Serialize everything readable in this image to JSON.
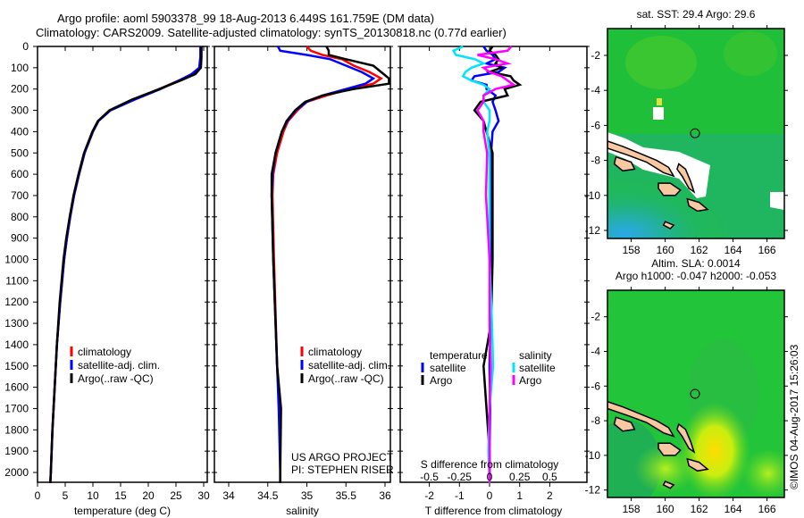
{
  "title_line1": "Argo profile: aoml 5903378_99 18-Aug-2013 6.449S 161.759E (DM data)",
  "title_line2": "Climatology: CARS2009. Satellite-adjusted climatology: synTS_20130818.nc (0.77d earlier)",
  "colors": {
    "climatology": "#ff0000",
    "satellite": "#0000ff",
    "argo": "#000000",
    "sal_satellite": "#00e5ff",
    "sal_argo": "#ff00ff"
  },
  "chart_data": [
    {
      "type": "line",
      "name": "temperature",
      "xlabel": "temperature (deg C)",
      "ylabel": "depth",
      "xlim": [
        -1,
        31
      ],
      "ylim": [
        2060,
        0
      ],
      "xticks": [
        "0",
        "5",
        "10",
        "15",
        "20",
        "25",
        "30"
      ],
      "xtick_values": [
        0,
        5,
        10,
        15,
        20,
        25,
        30
      ],
      "yticks": [
        "0",
        "100",
        "200",
        "300",
        "400",
        "500",
        "600",
        "700",
        "800",
        "900",
        "1000",
        "1100",
        "1200",
        "1300",
        "1400",
        "1500",
        "1600",
        "1700",
        "1800",
        "1900",
        "2000"
      ],
      "legend": [
        "climatology",
        "satellite-adj. clim.",
        "Argo(..raw -QC)"
      ],
      "depth": [
        0,
        50,
        100,
        130,
        160,
        200,
        250,
        300,
        350,
        400,
        500,
        600,
        700,
        800,
        900,
        1000,
        1200,
        1400,
        1600,
        1800,
        2000,
        2050
      ],
      "series": [
        {
          "name": "climatology",
          "color": "#ff0000",
          "values": [
            29.6,
            29.5,
            29.4,
            28,
            25.5,
            22,
            17.2,
            13,
            11,
            10,
            8.5,
            7.5,
            6.6,
            5.9,
            5.3,
            4.8,
            4.1,
            3.5,
            3.1,
            2.7,
            2.4,
            2.3
          ]
        },
        {
          "name": "satellite-adj. clim.",
          "color": "#0000ff",
          "values": [
            29.4,
            29.4,
            29.2,
            27.8,
            25.5,
            22.2,
            17.5,
            13.2,
            11,
            10,
            8.5,
            7.5,
            6.6,
            5.9,
            5.3,
            4.8,
            4.1,
            3.5,
            3.1,
            2.7,
            2.4,
            2.3
          ]
        },
        {
          "name": "Argo(..raw -QC)",
          "color": "#000000",
          "values": [
            29.6,
            29.6,
            29.5,
            28.5,
            25.8,
            22,
            17,
            13,
            10.9,
            9.9,
            8.4,
            7.4,
            6.5,
            5.8,
            5.2,
            4.7,
            4.0,
            3.5,
            3.1,
            2.7,
            2.4,
            2.3
          ]
        }
      ]
    },
    {
      "type": "line",
      "name": "salinity",
      "xlabel": "salinity",
      "xlim": [
        33.8,
        36.1
      ],
      "ylim": [
        2060,
        0
      ],
      "xticks": [
        "34",
        "34.5",
        "35",
        "35.5",
        "36"
      ],
      "xtick_values": [
        34,
        34.5,
        35,
        35.5,
        36
      ],
      "legend": [
        "climatology",
        "satellite-adj. clim.",
        "Argo(..raw -QC)"
      ],
      "annotation": [
        "US ARGO PROJECT",
        "PI: STEPHEN RISER"
      ],
      "depth": [
        0,
        20,
        40,
        60,
        90,
        120,
        150,
        175,
        200,
        230,
        260,
        300,
        350,
        400,
        500,
        600,
        700,
        1000,
        1500,
        1700,
        2000,
        2050
      ],
      "series": [
        {
          "name": "climatology",
          "color": "#ff0000",
          "values": [
            35.0,
            35.05,
            35.2,
            35.45,
            35.6,
            35.8,
            35.95,
            35.85,
            35.55,
            35.25,
            35.0,
            34.88,
            34.76,
            34.7,
            34.62,
            34.57,
            34.56,
            34.58,
            34.62,
            34.65,
            34.66,
            34.66
          ]
        },
        {
          "name": "satellite-adj. clim.",
          "color": "#0000ff",
          "values": [
            34.63,
            34.66,
            35.0,
            35.3,
            35.5,
            35.7,
            35.85,
            35.75,
            35.5,
            35.2,
            35.0,
            34.86,
            34.75,
            34.68,
            34.6,
            34.56,
            34.55,
            34.57,
            34.62,
            34.64,
            34.66,
            34.66
          ]
        },
        {
          "name": "Argo(..raw -QC)",
          "color": "#000000",
          "values": [
            35.25,
            35.28,
            35.28,
            35.5,
            35.85,
            35.95,
            36.05,
            36.05,
            35.6,
            35.2,
            34.98,
            34.85,
            34.74,
            34.68,
            34.6,
            34.55,
            34.55,
            34.57,
            34.62,
            34.67,
            34.66,
            34.66
          ]
        }
      ]
    },
    {
      "type": "line",
      "name": "difference",
      "xlabel": "T difference from climatology",
      "xlabel2": "S difference from climatology",
      "xlim": [
        -3,
        3
      ],
      "ylim": [
        2060,
        0
      ],
      "xticks": [
        "-2",
        "-1",
        "0",
        "1",
        "2"
      ],
      "xtick_values": [
        -2,
        -1,
        0,
        1,
        2
      ],
      "xticks2": [
        "-0.5",
        "-0.25",
        "0",
        "0.25",
        "0.5"
      ],
      "xtick2_values": [
        -0.5,
        -0.25,
        0,
        0.25,
        0.5
      ],
      "legend_temperature": {
        "title": "temperature",
        "items": [
          "satellite",
          "Argo"
        ]
      },
      "legend_salinity": {
        "title": "salinity",
        "items": [
          "satellite",
          "Argo"
        ]
      },
      "depth": [
        0,
        20,
        40,
        60,
        80,
        100,
        120,
        140,
        160,
        180,
        200,
        230,
        260,
        300,
        350,
        400,
        500,
        700,
        1000,
        1300,
        1500,
        1700,
        1900,
        2050
      ],
      "series": [
        {
          "name": "temperature satellite",
          "color": "#0000ff",
          "values": [
            -0.2,
            -0.1,
            0.1,
            0.2,
            -0.1,
            0.5,
            0.3,
            -0.5,
            -0.6,
            -0.1,
            -0.1,
            0.2,
            0.1,
            0.2,
            0.3,
            0.1,
            0.05,
            0.05,
            0.05,
            0.03,
            0.0,
            0.02,
            0.0,
            0.0
          ]
        },
        {
          "name": "temperature Argo",
          "color": "#000000",
          "values": [
            0.1,
            0.0,
            0.2,
            0.3,
            0.2,
            0.4,
            0.0,
            0.7,
            0.8,
            1.0,
            0.5,
            0.6,
            -0.3,
            -0.5,
            -0.2,
            -0.1,
            0.1,
            0.1,
            0.1,
            0.05,
            -0.2,
            -0.1,
            0.0,
            0.0
          ]
        },
        {
          "name": "salinity satellite",
          "color": "#00e5ff",
          "values": [
            -0.22,
            -0.3,
            -0.28,
            -0.12,
            -0.05,
            -0.15,
            -0.2,
            -0.22,
            -0.15,
            -0.05,
            0.0,
            -0.05,
            -0.05,
            0.0,
            0.0,
            -0.02,
            0.0,
            0.0,
            0.0,
            0.02,
            0.03,
            0.0,
            -0.01,
            0.0
          ]
        },
        {
          "name": "salinity Argo",
          "color": "#ff00ff",
          "values": [
            0.18,
            0.15,
            -0.1,
            0.05,
            0.15,
            -0.05,
            0.0,
            0.1,
            0.15,
            0.2,
            0.05,
            -0.05,
            -0.05,
            -0.1,
            -0.05,
            -0.05,
            -0.02,
            -0.03,
            0.0,
            0.0,
            0.01,
            0.0,
            0.0,
            0.0
          ]
        }
      ]
    }
  ],
  "map_sst": {
    "title": "sat. SST: 29.4 Argo: 29.6",
    "xticks": [
      "158",
      "160",
      "162",
      "164",
      "166"
    ],
    "yticks": [
      "-2",
      "-4",
      "-6",
      "-8",
      "-10",
      "-12"
    ]
  },
  "map_sla": {
    "title1": "Altim. SLA: 0.0014",
    "title2": "Argo h1000: -0.047 h2000: -0.053",
    "xticks": [
      "158",
      "160",
      "162",
      "164",
      "166"
    ],
    "yticks": [
      "-2",
      "-4",
      "-6",
      "-8",
      "-10",
      "-12"
    ]
  },
  "argo_position": {
    "lon": 161.759,
    "lat": -6.449
  },
  "credit": "©IMOS 04-Aug-2017 15:26:03"
}
